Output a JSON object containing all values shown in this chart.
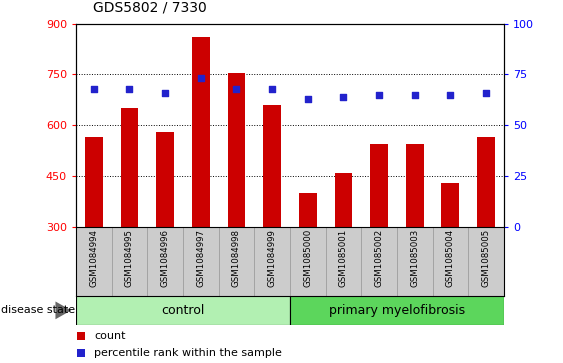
{
  "title": "GDS5802 / 7330",
  "samples": [
    "GSM1084994",
    "GSM1084995",
    "GSM1084996",
    "GSM1084997",
    "GSM1084998",
    "GSM1084999",
    "GSM1085000",
    "GSM1085001",
    "GSM1085002",
    "GSM1085003",
    "GSM1085004",
    "GSM1085005"
  ],
  "counts": [
    565,
    650,
    580,
    860,
    755,
    660,
    400,
    460,
    545,
    545,
    430,
    565
  ],
  "percentiles": [
    68,
    68,
    66,
    73,
    68,
    68,
    63,
    64,
    65,
    65,
    65,
    66
  ],
  "y_min": 300,
  "y_max": 900,
  "y_ticks": [
    300,
    450,
    600,
    750,
    900
  ],
  "y2_ticks": [
    0,
    25,
    50,
    75,
    100
  ],
  "bar_color": "#cc0000",
  "dot_color": "#2222cc",
  "n_control": 6,
  "n_total": 12,
  "control_label": "control",
  "disease_label": "primary myelofibrosis",
  "control_bg": "#b2f0b2",
  "disease_bg": "#5cd65c",
  "xlabel_bg": "#cccccc",
  "legend_count_label": "count",
  "legend_pct_label": "percentile rank within the sample",
  "bar_width": 0.5,
  "figsize": [
    5.63,
    3.63
  ],
  "dpi": 100
}
